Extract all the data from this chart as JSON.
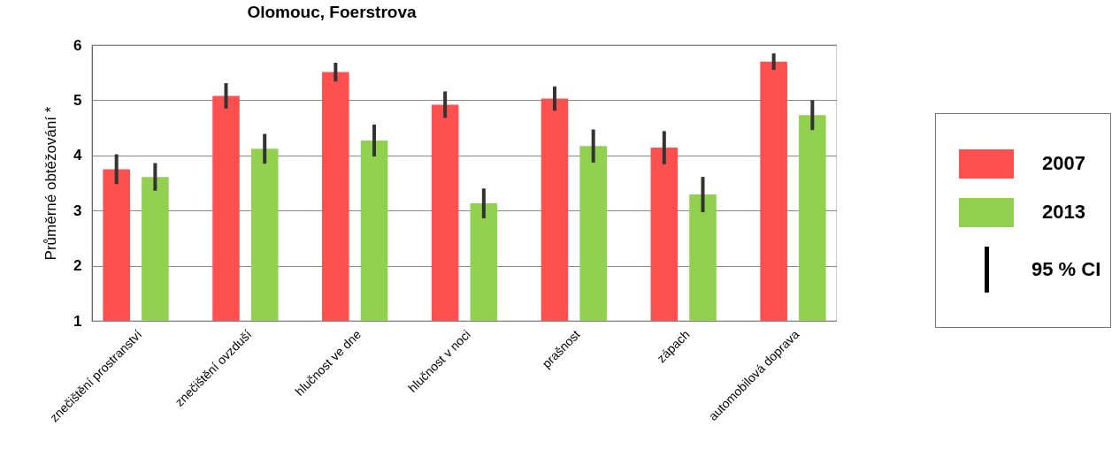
{
  "chart_data": {
    "type": "bar",
    "title": "Olomouc, Foerstrova",
    "ylabel": "Průměrné obtěžování *",
    "categories": [
      "znečištění prostranství",
      "znečištění ovzduší",
      "hlučnost ve dne",
      "hlučnost v noci",
      "prašnost",
      "zápach",
      "automobilová doprava"
    ],
    "series": [
      {
        "name": "2007",
        "color": "#ff5050",
        "values": [
          3.75,
          5.08,
          5.51,
          4.92,
          5.03,
          4.14,
          5.7
        ],
        "errors": [
          0.27,
          0.23,
          0.17,
          0.24,
          0.22,
          0.3,
          0.15
        ]
      },
      {
        "name": "2013",
        "color": "#92d050",
        "values": [
          3.61,
          4.12,
          4.27,
          3.13,
          4.17,
          3.29,
          4.73
        ],
        "errors": [
          0.25,
          0.27,
          0.29,
          0.27,
          0.3,
          0.32,
          0.27
        ]
      }
    ],
    "ylim": [
      1,
      6
    ],
    "yticks": [
      1,
      2,
      3,
      4,
      5,
      6
    ],
    "grid": "y",
    "legend": "right",
    "annotations": [
      "95 % CI"
    ]
  }
}
